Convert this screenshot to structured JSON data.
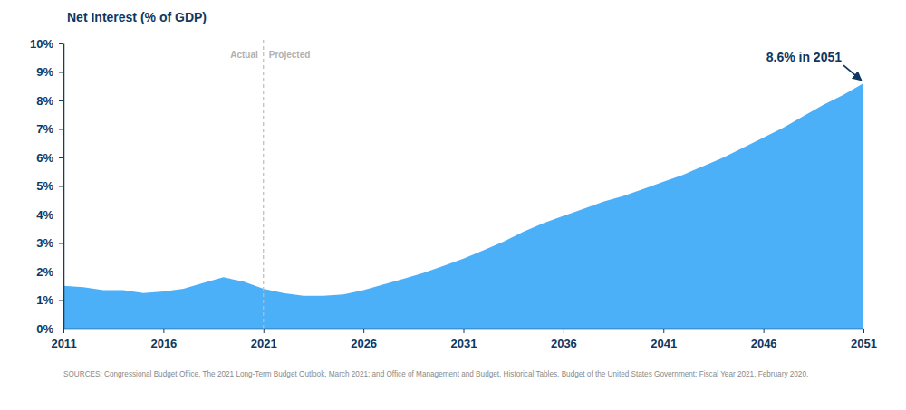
{
  "chart_data": {
    "type": "area",
    "title": "Net Interest (% of GDP)",
    "source": "SOURCES: Congressional Budget Office, The 2021 Long-Term Budget Outlook, March 2021; and Office of Management and Budget, Historical Tables, Budget of the United States Government: Fiscal Year 2021, February 2020.",
    "x": [
      2011,
      2012,
      2013,
      2014,
      2015,
      2016,
      2017,
      2018,
      2019,
      2020,
      2021,
      2022,
      2023,
      2024,
      2025,
      2026,
      2027,
      2028,
      2029,
      2030,
      2031,
      2032,
      2033,
      2034,
      2035,
      2036,
      2037,
      2038,
      2039,
      2040,
      2041,
      2042,
      2043,
      2044,
      2045,
      2046,
      2047,
      2048,
      2049,
      2050,
      2051
    ],
    "values": [
      1.5,
      1.45,
      1.35,
      1.35,
      1.25,
      1.3,
      1.4,
      1.6,
      1.8,
      1.65,
      1.4,
      1.25,
      1.15,
      1.15,
      1.2,
      1.35,
      1.55,
      1.75,
      1.95,
      2.2,
      2.45,
      2.75,
      3.05,
      3.4,
      3.7,
      3.95,
      4.2,
      4.45,
      4.65,
      4.9,
      5.15,
      5.4,
      5.7,
      6.0,
      6.35,
      6.7,
      7.05,
      7.45,
      7.85,
      8.2,
      8.6
    ],
    "color": "#4cb0f9",
    "xlim": [
      2011,
      2051
    ],
    "xticks": [
      2011,
      2016,
      2021,
      2026,
      2031,
      2036,
      2041,
      2046,
      2051
    ],
    "ylim": [
      0,
      10
    ],
    "yticks": [
      {
        "value": 0,
        "label": "0%"
      },
      {
        "value": 1,
        "label": "1%"
      },
      {
        "value": 2,
        "label": "2%"
      },
      {
        "value": 3,
        "label": "3%"
      },
      {
        "value": 4,
        "label": "4%"
      },
      {
        "value": 5,
        "label": "5%"
      },
      {
        "value": 6,
        "label": "6%"
      },
      {
        "value": 7,
        "label": "7%"
      },
      {
        "value": 8,
        "label": "8%"
      },
      {
        "value": 9,
        "label": "9%"
      },
      {
        "value": 10,
        "label": "10%"
      }
    ],
    "grid": false,
    "divider": {
      "x": 2021,
      "labels": [
        "Actual",
        "Projected"
      ]
    },
    "annotations": [
      {
        "text": "8.6% in 2051",
        "x": 2051,
        "y": 8.6
      }
    ]
  }
}
